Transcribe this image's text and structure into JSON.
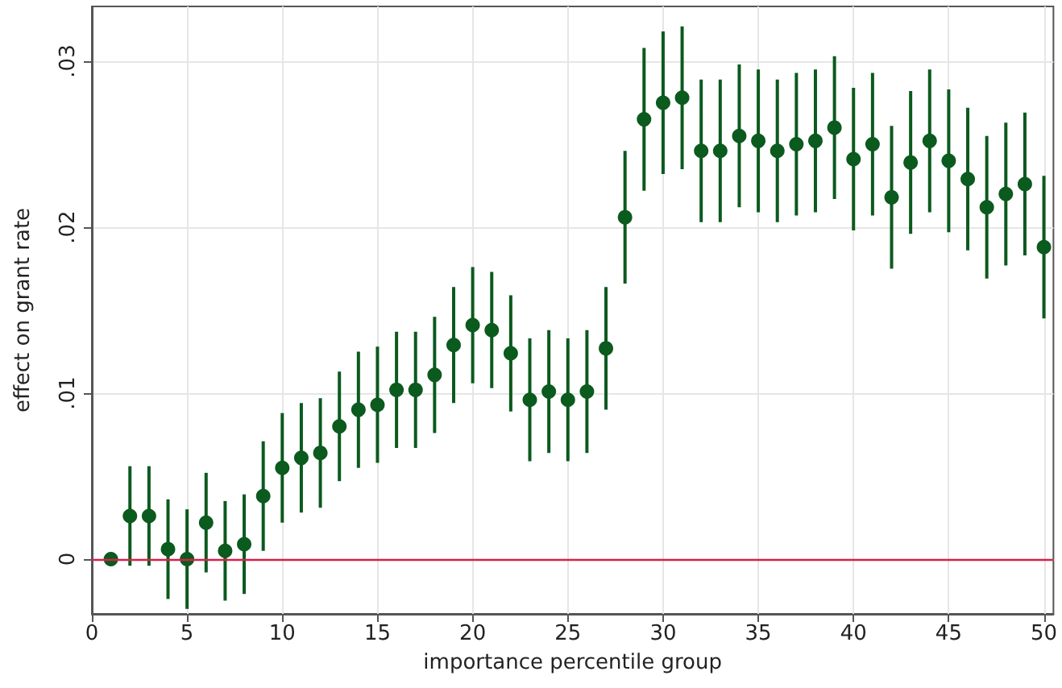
{
  "chart_data": {
    "type": "scatter",
    "xlabel": "importance percentile group",
    "ylabel": "effect on grant rate",
    "x": [
      1,
      2,
      3,
      4,
      5,
      6,
      7,
      8,
      9,
      10,
      11,
      12,
      13,
      14,
      15,
      16,
      17,
      18,
      19,
      20,
      21,
      22,
      23,
      24,
      25,
      26,
      27,
      28,
      29,
      30,
      31,
      32,
      33,
      34,
      35,
      36,
      37,
      38,
      39,
      40,
      41,
      42,
      43,
      44,
      45,
      46,
      47,
      48,
      49,
      50
    ],
    "series": [
      {
        "color": "#0b5a1e",
        "values": [
          0,
          0.0026,
          0.0026,
          0.0006,
          0,
          0.0022,
          0.0005,
          0.0009,
          0.0038,
          0.0055,
          0.0061,
          0.0064,
          0.008,
          0.009,
          0.0093,
          0.0102,
          0.0102,
          0.0111,
          0.0129,
          0.0141,
          0.0138,
          0.0124,
          0.0096,
          0.0101,
          0.0096,
          0.0101,
          0.0127,
          0.0206,
          0.0265,
          0.0275,
          0.0278,
          0.0246,
          0.0246,
          0.0255,
          0.0252,
          0.0246,
          0.025,
          0.0252,
          0.026,
          0.0241,
          0.025,
          0.0218,
          0.0239,
          0.0252,
          0.024,
          0.0229,
          0.0212,
          0.022,
          0.0226,
          0.0188
        ],
        "errors": [
          null,
          0.003,
          0.003,
          0.003,
          0.003,
          0.003,
          0.003,
          0.003,
          0.0033,
          0.0033,
          0.0033,
          0.0033,
          0.0033,
          0.0035,
          0.0035,
          0.0035,
          0.0035,
          0.0035,
          0.0035,
          0.0035,
          0.0035,
          0.0035,
          0.0037,
          0.0037,
          0.0037,
          0.0037,
          0.0037,
          0.004,
          0.0043,
          0.0043,
          0.0043,
          0.0043,
          0.0043,
          0.0043,
          0.0043,
          0.0043,
          0.0043,
          0.0043,
          0.0043,
          0.0043,
          0.0043,
          0.0043,
          0.0043,
          0.0043,
          0.0043,
          0.0043,
          0.0043,
          0.0043,
          0.0043,
          0.0043
        ]
      }
    ],
    "xlim": [
      0,
      50.5
    ],
    "xticks": [
      0,
      5,
      10,
      15,
      20,
      25,
      30,
      35,
      40,
      45,
      50
    ],
    "ylim": [
      -0.0033,
      0.0333
    ],
    "yticks": [
      0,
      {
        "value": 0.01,
        "label": ".01"
      },
      {
        "value": 0.02,
        "label": ".02"
      },
      {
        "value": 0.03,
        "label": ".03"
      }
    ],
    "ref_lines": [
      {
        "axis": "y",
        "value": 0,
        "color": "#d6204a"
      }
    ],
    "grid": true,
    "marker": "circle",
    "legend": false
  }
}
